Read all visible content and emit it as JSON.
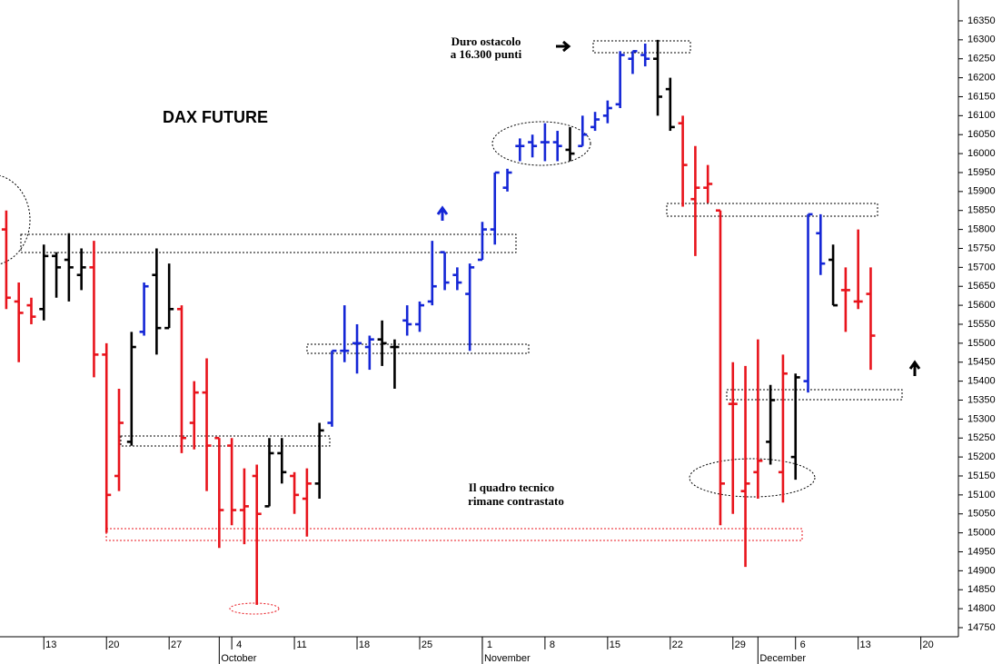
{
  "chart_data": {
    "type": "ohlc",
    "title": "DAX FUTURE",
    "annotations": [
      "Duro ostacolo",
      "a 16.300 punti",
      "Il quadro tecnico",
      "rimane contrastato"
    ],
    "open": [
      15800,
      15610,
      15600,
      15590,
      15730,
      15720,
      15680,
      15700,
      15470,
      15150,
      15240,
      15530,
      15680,
      15540,
      15590,
      15290,
      15370,
      15250,
      15230,
      15060,
      15150,
      15070,
      15210,
      15150,
      15090,
      15130,
      15290,
      15480,
      15500,
      15490,
      15510,
      15490,
      15560,
      15550,
      15610,
      15740,
      15680,
      15630,
      15720,
      15800,
      15910,
      16020,
      16030,
      16030,
      16030,
      16010,
      16020,
      16070,
      16100,
      16130,
      16250,
      16260,
      16250,
      16170,
      16080,
      15880,
      15910,
      15850,
      15340,
      15110,
      15160,
      15240,
      15160,
      15200,
      15400,
      15790,
      15720,
      15640,
      15610,
      15630
    ],
    "high": [
      15850,
      15660,
      15620,
      15760,
      15740,
      15790,
      15750,
      15770,
      15500,
      15380,
      15530,
      15660,
      15750,
      15710,
      15600,
      15400,
      15460,
      15250,
      15250,
      15170,
      15180,
      15250,
      15250,
      15160,
      15170,
      15290,
      15480,
      15600,
      15550,
      15520,
      15560,
      15510,
      15600,
      15610,
      15770,
      15740,
      15700,
      15710,
      15820,
      15950,
      15960,
      16040,
      16050,
      16080,
      16060,
      16070,
      16100,
      16110,
      16140,
      16270,
      16270,
      16290,
      16300,
      16200,
      16100,
      16020,
      15970,
      15850,
      15450,
      15440,
      15510,
      15390,
      15470,
      15420,
      15840,
      15840,
      15760,
      15700,
      15800,
      15700
    ],
    "low": [
      15590,
      15450,
      15550,
      15560,
      15620,
      15610,
      15640,
      15410,
      15000,
      15110,
      15230,
      15520,
      15470,
      15540,
      15210,
      15220,
      15110,
      14960,
      15020,
      14970,
      14810,
      15070,
      15130,
      15050,
      14990,
      15090,
      15280,
      15450,
      15420,
      15430,
      15440,
      15380,
      15520,
      15530,
      15600,
      15640,
      15640,
      15480,
      15720,
      15760,
      15900,
      15980,
      15990,
      15980,
      15980,
      15980,
      16020,
      16060,
      16080,
      16120,
      16210,
      16230,
      16100,
      16060,
      15860,
      15730,
      15870,
      15020,
      15050,
      14910,
      15090,
      15180,
      15080,
      15140,
      15370,
      15680,
      15600,
      15530,
      15590,
      15430
    ],
    "close": [
      15620,
      15580,
      15570,
      15730,
      15700,
      15700,
      15700,
      15470,
      15100,
      15290,
      15490,
      15650,
      15540,
      15590,
      15250,
      15370,
      15230,
      15060,
      15060,
      15070,
      15050,
      15210,
      15160,
      15100,
      15130,
      15270,
      15480,
      15480,
      15500,
      15510,
      15500,
      15490,
      15550,
      15600,
      15650,
      15660,
      15660,
      15700,
      15800,
      15950,
      15950,
      16020,
      16020,
      16030,
      16020,
      16000,
      16050,
      16090,
      16120,
      16260,
      16270,
      16250,
      16150,
      16070,
      15970,
      15910,
      15920,
      15130,
      15340,
      15130,
      15190,
      15350,
      15420,
      15410,
      15840,
      15710,
      15600,
      15640,
      15610,
      15520
    ],
    "colors": [
      "#e8141c",
      "#e8141c",
      "#e8141c",
      "#000000",
      "#000000",
      "#000000",
      "#000000",
      "#e8141c",
      "#e8141c",
      "#e8141c",
      "#000000",
      "#1426d6",
      "#000000",
      "#000000",
      "#e8141c",
      "#e8141c",
      "#e8141c",
      "#e8141c",
      "#e8141c",
      "#e8141c",
      "#e8141c",
      "#000000",
      "#000000",
      "#e8141c",
      "#e8141c",
      "#000000",
      "#1426d6",
      "#1426d6",
      "#1426d6",
      "#1426d6",
      "#000000",
      "#000000",
      "#1426d6",
      "#1426d6",
      "#1426d6",
      "#1426d6",
      "#1426d6",
      "#1426d6",
      "#1426d6",
      "#1426d6",
      "#1426d6",
      "#1426d6",
      "#1426d6",
      "#1426d6",
      "#1426d6",
      "#000000",
      "#1426d6",
      "#1426d6",
      "#1426d6",
      "#1426d6",
      "#1426d6",
      "#1426d6",
      "#000000",
      "#000000",
      "#e8141c",
      "#e8141c",
      "#e8141c",
      "#e8141c",
      "#e8141c",
      "#e8141c",
      "#e8141c",
      "#000000",
      "#e8141c",
      "#000000",
      "#1426d6",
      "#1426d6",
      "#000000",
      "#e8141c",
      "#e8141c",
      "#e8141c"
    ],
    "xlim": [
      -0.5,
      76
    ],
    "xticks": [
      {
        "value": 3,
        "label": "13"
      },
      {
        "value": 8,
        "label": "20"
      },
      {
        "value": 13,
        "label": "27"
      },
      {
        "value": 18,
        "label": "4"
      },
      {
        "value": 23,
        "label": "11"
      },
      {
        "value": 28,
        "label": "18"
      },
      {
        "value": 33,
        "label": "25"
      },
      {
        "value": 38,
        "label": "1"
      },
      {
        "value": 43,
        "label": "8"
      },
      {
        "value": 48,
        "label": "15"
      },
      {
        "value": 53,
        "label": "22"
      },
      {
        "value": 58,
        "label": "29"
      },
      {
        "value": 63,
        "label": "6"
      },
      {
        "value": 68,
        "label": "13"
      },
      {
        "value": 73,
        "label": "20"
      }
    ],
    "month_ticks": [
      {
        "value": 17,
        "label": "October"
      },
      {
        "value": 38,
        "label": "November"
      },
      {
        "value": 60,
        "label": "December"
      }
    ],
    "ylim": [
      14726,
      16405
    ],
    "yticks": [
      14750,
      14800,
      14850,
      14900,
      14950,
      15000,
      15050,
      15100,
      15150,
      15200,
      15250,
      15300,
      15350,
      15400,
      15450,
      15500,
      15550,
      15600,
      15650,
      15700,
      15750,
      15800,
      15850,
      15900,
      15950,
      16000,
      16050,
      16100,
      16150,
      16200,
      16250,
      16300,
      16350
    ]
  }
}
